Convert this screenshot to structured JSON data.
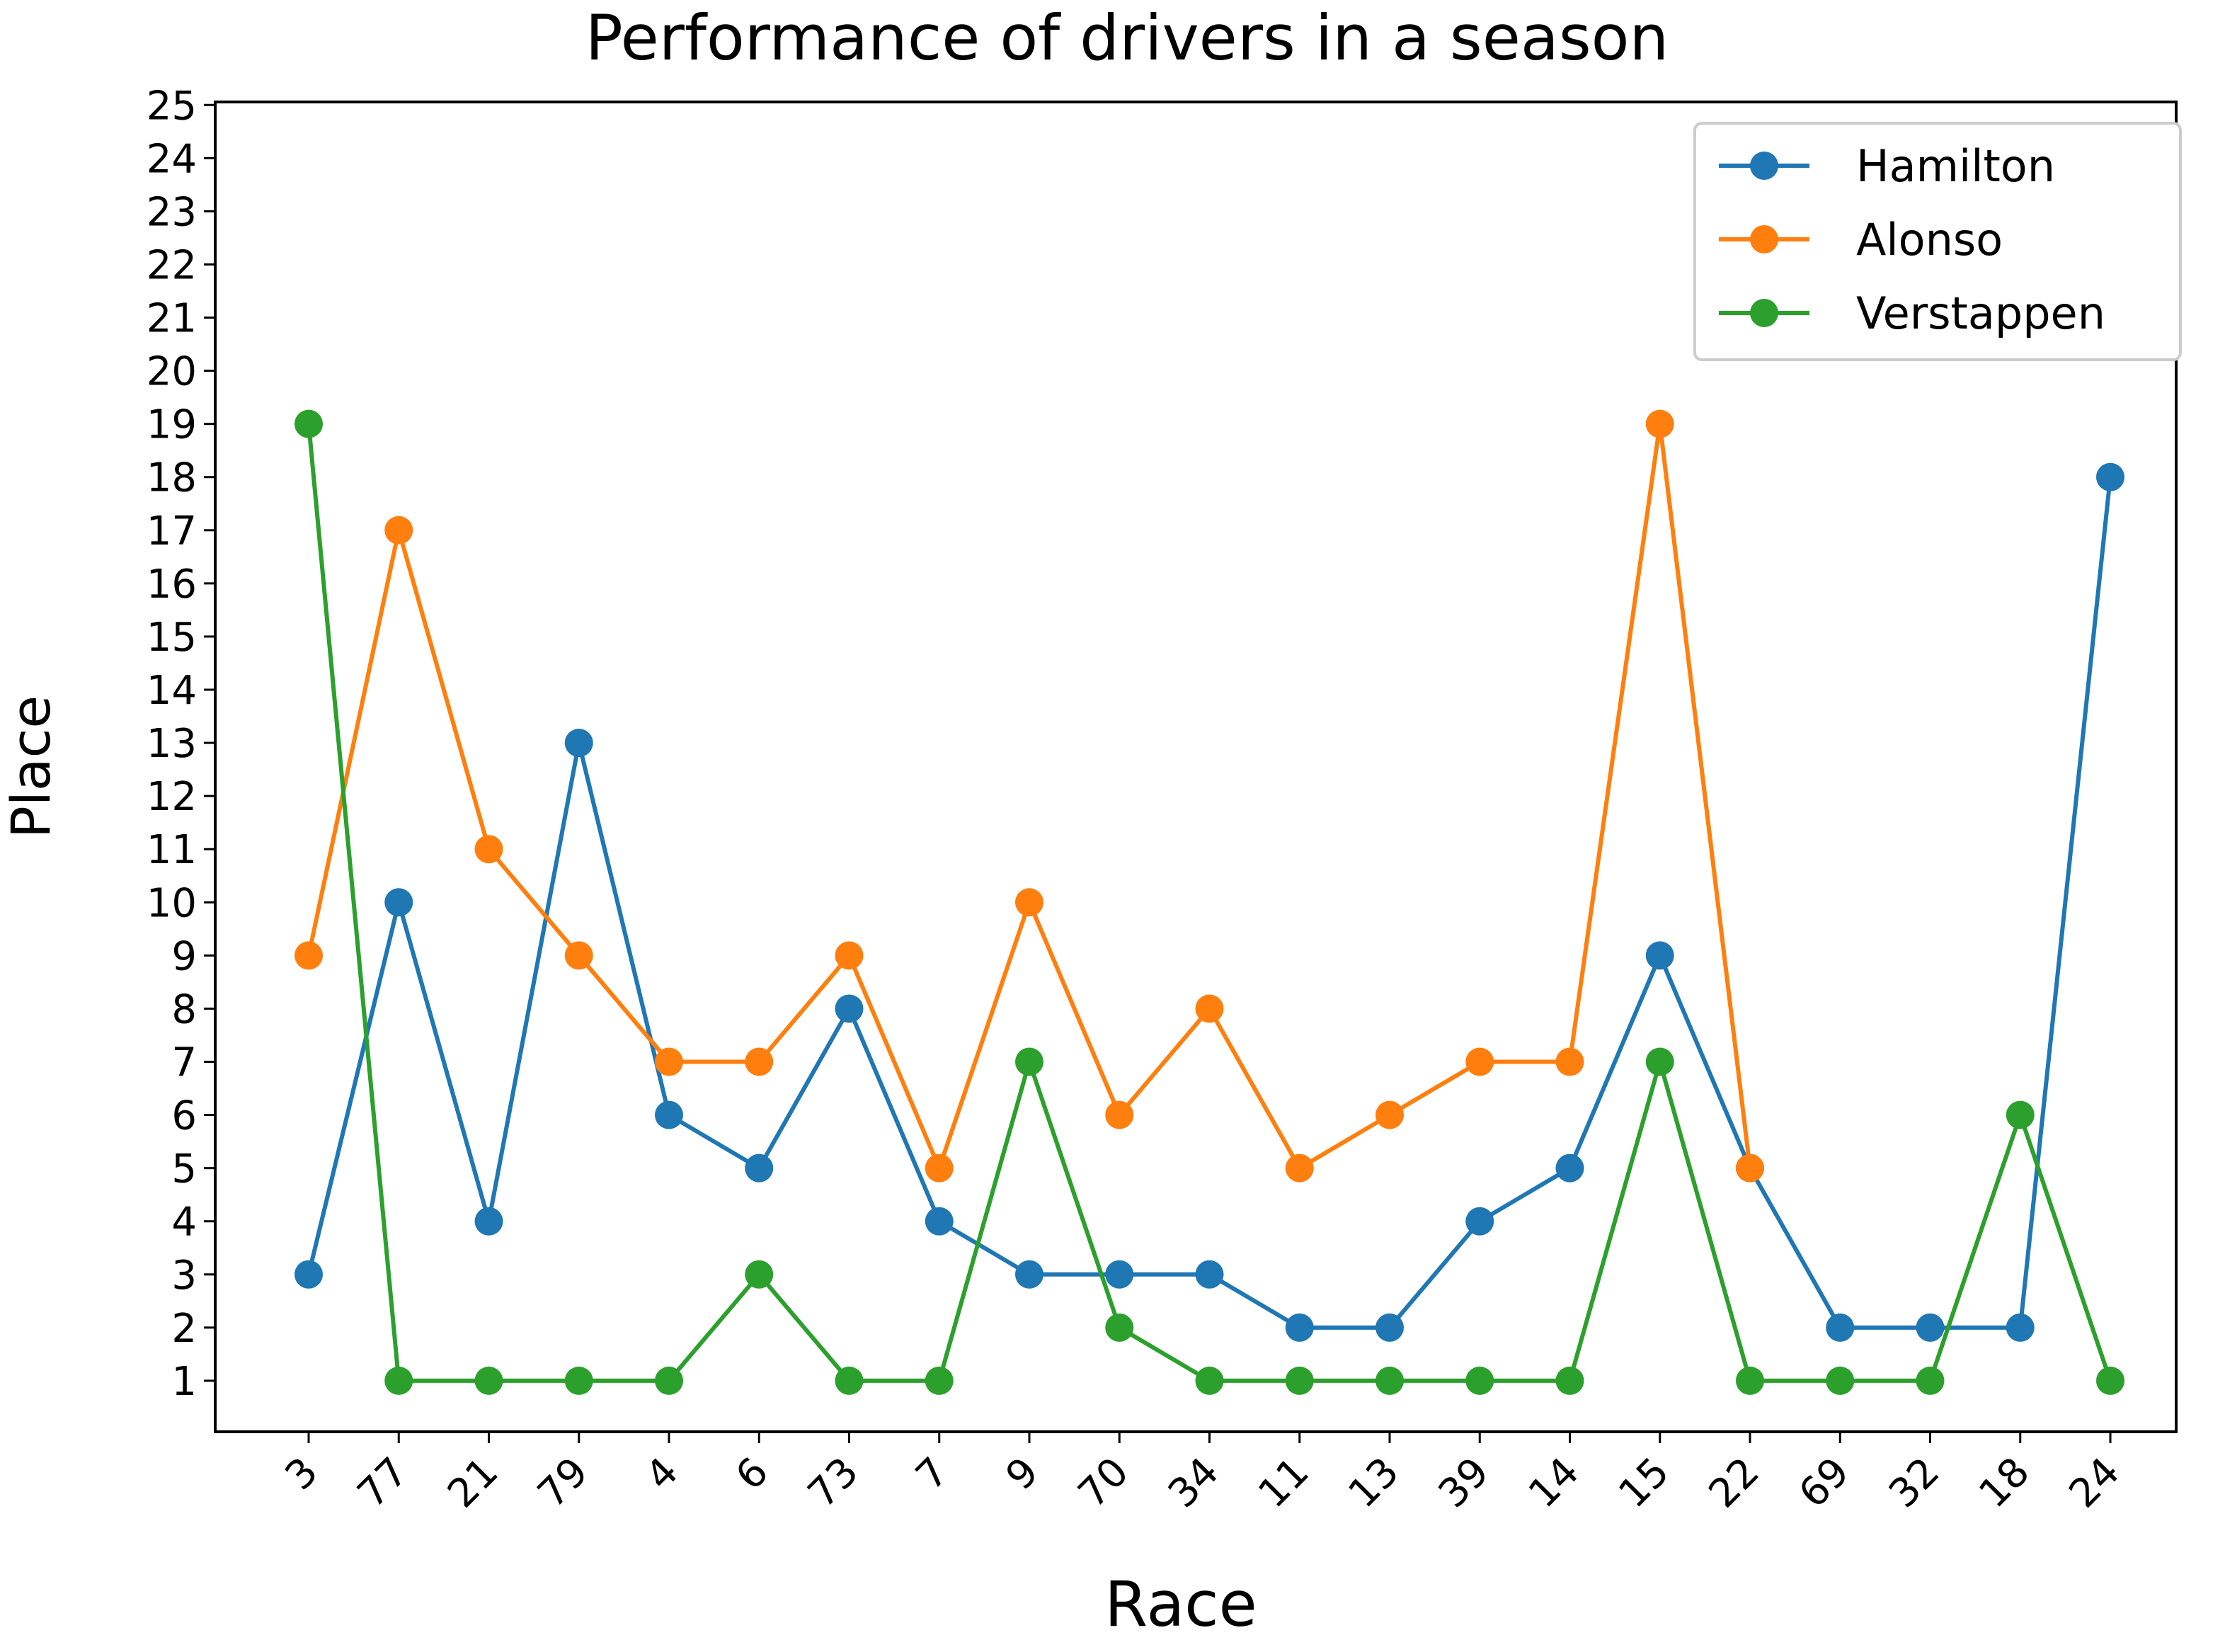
{
  "chart_data": {
    "type": "line",
    "title": "Performance of drivers in a season",
    "xlabel": "Race",
    "ylabel": "Place",
    "categories": [
      "3",
      "77",
      "21",
      "79",
      "4",
      "6",
      "73",
      "7",
      "9",
      "70",
      "34",
      "11",
      "13",
      "39",
      "14",
      "15",
      "22",
      "69",
      "32",
      "18",
      "24"
    ],
    "yticks": [
      "1",
      "2",
      "3",
      "4",
      "5",
      "6",
      "7",
      "8",
      "9",
      "10",
      "11",
      "12",
      "13",
      "14",
      "15",
      "16",
      "17",
      "18",
      "19",
      "20",
      "21",
      "22",
      "23",
      "24",
      "25"
    ],
    "ylim": [
      0,
      25
    ],
    "grid": false,
    "legend_position": "top-right",
    "series": [
      {
        "name": "Hamilton",
        "color": "#1f77b4",
        "values": [
          3,
          10,
          4,
          13,
          6,
          5,
          8,
          4,
          3,
          3,
          3,
          2,
          2,
          4,
          5,
          9,
          5,
          2,
          2,
          2,
          18
        ]
      },
      {
        "name": "Alonso",
        "color": "#ff7f0e",
        "values": [
          9,
          17,
          11,
          9,
          7,
          7,
          9,
          5,
          10,
          6,
          8,
          5,
          6,
          7,
          7,
          19,
          5,
          null,
          null,
          null,
          null
        ]
      },
      {
        "name": "Verstappen",
        "color": "#2ca02c",
        "values": [
          19,
          1,
          1,
          1,
          1,
          3,
          1,
          1,
          7,
          2,
          1,
          1,
          1,
          1,
          1,
          7,
          1,
          1,
          1,
          6,
          1
        ]
      }
    ]
  }
}
